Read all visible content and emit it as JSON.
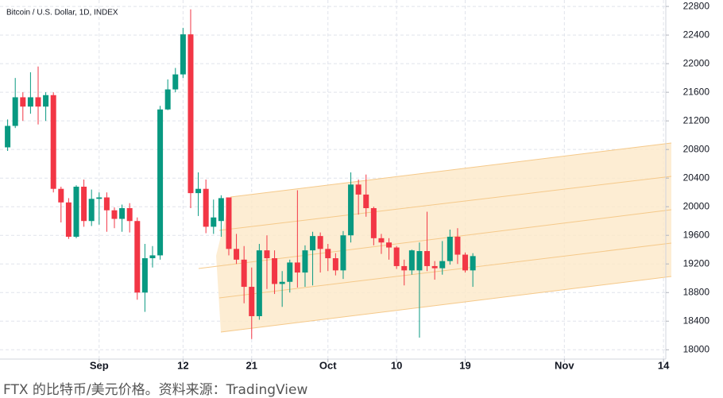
{
  "chart_data": {
    "type": "candlestick",
    "title": "Bitcoin / U.S. Dollar, 1D, INDEX",
    "x": [
      0,
      1,
      2,
      3,
      4,
      5,
      6,
      7,
      8,
      9,
      10,
      11,
      12,
      13,
      14,
      15,
      16,
      17,
      18,
      19,
      20,
      21,
      22,
      23,
      24,
      25,
      26,
      27,
      28,
      29,
      30,
      31,
      32,
      33,
      34,
      35,
      36,
      37,
      38,
      39,
      40,
      41,
      42,
      43,
      44,
      45,
      46,
      47,
      48,
      49,
      50,
      51,
      52,
      53,
      54,
      55,
      56,
      57,
      58,
      59,
      60,
      61
    ],
    "open": [
      20830,
      21130,
      21530,
      21400,
      21530,
      21400,
      21560,
      20250,
      20060,
      19580,
      20280,
      19800,
      20110,
      20130,
      19950,
      19830,
      19980,
      19800,
      18800,
      19280,
      19320,
      21360,
      21640,
      21850,
      22410,
      20190,
      20250,
      19720,
      19800,
      20130,
      19410,
      19260,
      18880,
      18470,
      19390,
      19280,
      18920,
      18950,
      19220,
      19080,
      19390,
      19590,
      19410,
      19280,
      19110,
      19600,
      20310,
      20170,
      19980,
      19560,
      19500,
      19430,
      19170,
      19110,
      19110,
      19380,
      19170,
      19140,
      19240,
      19580,
      19330,
      19110
    ],
    "high": [
      21220,
      21800,
      21600,
      21880,
      21960,
      21600,
      21600,
      20280,
      20120,
      20300,
      20380,
      20240,
      20200,
      20200,
      19990,
      20030,
      20050,
      19850,
      19480,
      19450,
      21410,
      21780,
      21940,
      22500,
      22760,
      20480,
      20380,
      20100,
      20160,
      20130,
      19620,
      19450,
      19150,
      19480,
      19600,
      19390,
      19100,
      19260,
      20230,
      19460,
      19650,
      19640,
      19480,
      19350,
      19660,
      20480,
      20380,
      20450,
      20000,
      19620,
      19560,
      19450,
      19260,
      19400,
      19500,
      19930,
      19240,
      19520,
      19680,
      19700,
      19360,
      19350
    ],
    "low": [
      20780,
      21100,
      21200,
      21300,
      21150,
      21200,
      20200,
      19780,
      19550,
      19560,
      19720,
      19730,
      19750,
      19650,
      19700,
      19650,
      19640,
      18700,
      18530,
      19150,
      19260,
      21350,
      21600,
      21800,
      19980,
      19870,
      19630,
      19620,
      19580,
      19320,
      19200,
      18650,
      18150,
      18420,
      18850,
      18780,
      18600,
      18800,
      18870,
      18880,
      18900,
      19080,
      19100,
      19040,
      18990,
      19500,
      19890,
      19860,
      19460,
      19340,
      19260,
      19130,
      18900,
      19050,
      18170,
      19100,
      18980,
      19050,
      19190,
      19200,
      19080,
      18880
    ],
    "close": [
      21130,
      21530,
      21400,
      21530,
      21400,
      21560,
      20250,
      20060,
      19580,
      20280,
      19800,
      20110,
      20130,
      19950,
      19830,
      19980,
      19800,
      18800,
      19280,
      19320,
      21360,
      21640,
      21850,
      22410,
      20190,
      20250,
      19720,
      19850,
      20120,
      19410,
      19260,
      18880,
      18470,
      19390,
      19280,
      18920,
      18950,
      19220,
      19080,
      19390,
      19590,
      19410,
      19280,
      19110,
      19600,
      20310,
      20170,
      19980,
      19560,
      19500,
      19430,
      19170,
      19110,
      19390,
      19380,
      19170,
      19140,
      19240,
      19580,
      19330,
      19110,
      19310
    ],
    "up_color": "#089981",
    "down_color": "#f23645",
    "xlim": [
      -1,
      86.3
    ],
    "xticks": [
      {
        "value": 12,
        "label": "Sep"
      },
      {
        "value": 23,
        "label": "12"
      },
      {
        "value": 32,
        "label": "21"
      },
      {
        "value": 42,
        "label": "Oct"
      },
      {
        "value": 51,
        "label": "10"
      },
      {
        "value": 60,
        "label": "19"
      },
      {
        "value": 73,
        "label": "Nov"
      },
      {
        "value": 86,
        "label": "14"
      }
    ],
    "ylim": [
      17870,
      22890
    ],
    "yticks": [
      18000,
      18400,
      18800,
      19200,
      19600,
      20000,
      20400,
      20800,
      21200,
      21600,
      22000,
      22400,
      22800
    ],
    "grid": true
  },
  "caption": "FTX 的比特币/美元价格。资料来源：TradingView"
}
